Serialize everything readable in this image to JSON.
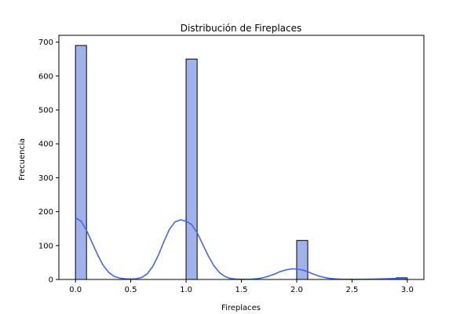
{
  "chart_data": {
    "type": "bar",
    "title": "Distribución de Fireplaces",
    "xlabel": "Fireplaces",
    "ylabel": "Frecuencia",
    "xlim": [
      -0.15,
      3.15
    ],
    "ylim": [
      0,
      720
    ],
    "x_ticks": [
      0.0,
      0.5,
      1.0,
      1.5,
      2.0,
      2.5,
      3.0
    ],
    "x_tick_labels": [
      "0.0",
      "0.5",
      "1.0",
      "1.5",
      "2.0",
      "2.5",
      "3.0"
    ],
    "y_ticks": [
      0,
      100,
      200,
      300,
      400,
      500,
      600,
      700
    ],
    "y_tick_labels": [
      "0",
      "100",
      "200",
      "300",
      "400",
      "500",
      "600",
      "700"
    ],
    "grid": false,
    "bin_width": 0.1,
    "bars": [
      {
        "x_start": 0.0,
        "x_end": 0.1,
        "value": 690
      },
      {
        "x_start": 1.0,
        "x_end": 1.1,
        "value": 650
      },
      {
        "x_start": 2.0,
        "x_end": 2.1,
        "value": 115
      },
      {
        "x_start": 2.9,
        "x_end": 3.0,
        "value": 5
      }
    ],
    "kde_line": {
      "x": [
        0.0,
        0.05,
        0.1,
        0.15,
        0.2,
        0.25,
        0.3,
        0.35,
        0.4,
        0.45,
        0.5,
        0.55,
        0.6,
        0.65,
        0.7,
        0.75,
        0.8,
        0.85,
        0.9,
        0.95,
        1.0,
        1.05,
        1.1,
        1.15,
        1.2,
        1.25,
        1.3,
        1.35,
        1.4,
        1.45,
        1.5,
        1.55,
        1.6,
        1.65,
        1.7,
        1.75,
        1.8,
        1.85,
        1.9,
        1.95,
        2.0,
        2.05,
        2.1,
        2.15,
        2.2,
        2.25,
        2.3,
        2.35,
        2.4,
        2.45,
        2.5,
        2.6,
        2.7,
        2.8,
        2.9,
        3.0
      ],
      "y": [
        182,
        172,
        145,
        109,
        73,
        42,
        21,
        9,
        4,
        2,
        1,
        2,
        6,
        17,
        39,
        72,
        112,
        148,
        170,
        176,
        172,
        162,
        138,
        104,
        70,
        41,
        21,
        9,
        3,
        1,
        0.5,
        0.6,
        1,
        2.5,
        5.5,
        10,
        16,
        23,
        28,
        31,
        31,
        28,
        23,
        16,
        10,
        6,
        3,
        1.5,
        0.8,
        0.6,
        0.5,
        0.6,
        1,
        2,
        3,
        3
      ]
    },
    "colors": {
      "bar_fill": "#a1b2ea",
      "bar_edge": "#000000",
      "kde": "#4169e1"
    }
  }
}
